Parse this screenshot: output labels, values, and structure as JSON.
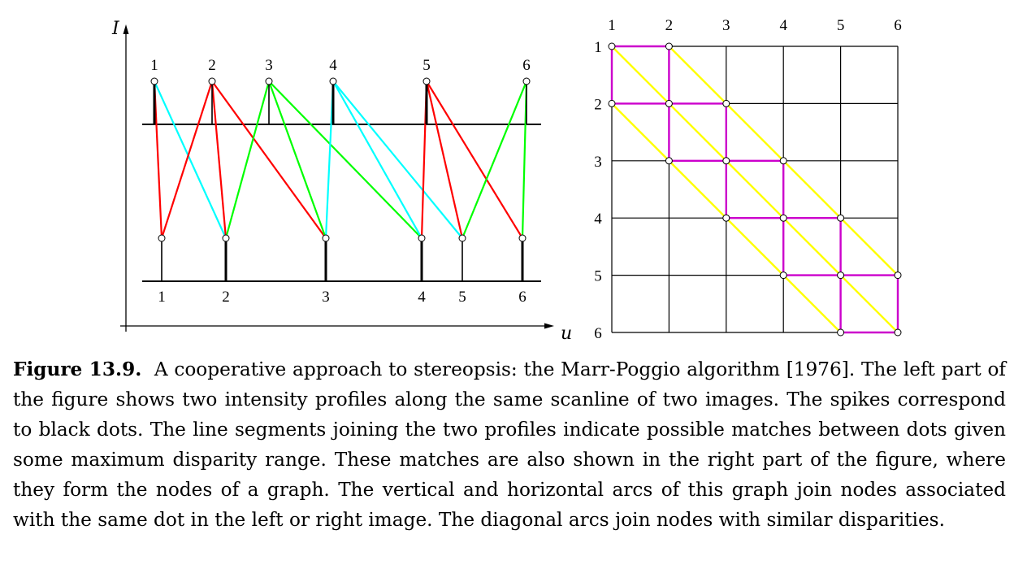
{
  "figure": {
    "left_panel": {
      "axis_labels": {
        "vertical": "I",
        "horizontal": "u"
      },
      "top_profile_labels": [
        "1",
        "2",
        "3",
        "4",
        "5",
        "6"
      ],
      "bottom_profile_labels": [
        "1",
        "2",
        "3",
        "4",
        "5",
        "6"
      ],
      "matches": [
        {
          "top": 1,
          "bottom": 1,
          "color": "#ff0000"
        },
        {
          "top": 1,
          "bottom": 2,
          "color": "#00ffff"
        },
        {
          "top": 2,
          "bottom": 1,
          "color": "#ff0000"
        },
        {
          "top": 2,
          "bottom": 2,
          "color": "#ff0000"
        },
        {
          "top": 2,
          "bottom": 3,
          "color": "#ff0000"
        },
        {
          "top": 3,
          "bottom": 2,
          "color": "#00ff00"
        },
        {
          "top": 3,
          "bottom": 3,
          "color": "#00ff00"
        },
        {
          "top": 3,
          "bottom": 4,
          "color": "#00ff00"
        },
        {
          "top": 4,
          "bottom": 3,
          "color": "#00ffff"
        },
        {
          "top": 4,
          "bottom": 4,
          "color": "#00ffff"
        },
        {
          "top": 4,
          "bottom": 5,
          "color": "#00ffff"
        },
        {
          "top": 5,
          "bottom": 4,
          "color": "#ff0000"
        },
        {
          "top": 5,
          "bottom": 5,
          "color": "#ff0000"
        },
        {
          "top": 5,
          "bottom": 6,
          "color": "#ff0000"
        },
        {
          "top": 6,
          "bottom": 5,
          "color": "#00ff00"
        },
        {
          "top": 6,
          "bottom": 6,
          "color": "#00ff00"
        }
      ]
    },
    "right_panel": {
      "column_labels": [
        "1",
        "2",
        "3",
        "4",
        "5",
        "6"
      ],
      "row_labels": [
        "1",
        "2",
        "3",
        "4",
        "5",
        "6"
      ],
      "nodes": [
        [
          1,
          1
        ],
        [
          1,
          2
        ],
        [
          2,
          1
        ],
        [
          2,
          2
        ],
        [
          2,
          3
        ],
        [
          3,
          2
        ],
        [
          3,
          3
        ],
        [
          3,
          4
        ],
        [
          4,
          3
        ],
        [
          4,
          4
        ],
        [
          4,
          5
        ],
        [
          5,
          4
        ],
        [
          5,
          5
        ],
        [
          5,
          6
        ],
        [
          6,
          5
        ],
        [
          6,
          6
        ]
      ],
      "colors": {
        "arc": "#cc00cc",
        "diagonal": "#ffff00",
        "grid": "#000000"
      }
    }
  },
  "caption": {
    "lead": "Figure 13.9.",
    "text": "A cooperative approach to stereopsis: the Marr-Poggio algorithm [1976]. The left part of the figure shows two intensity profiles along the same scanline of two images. The spikes correspond to black dots. The line segments joining the two profiles indicate possible matches between dots given some maximum disparity range. These matches are also shown in the right part of the figure, where they form the nodes of a graph. The vertical and horizontal arcs of this graph join nodes associated with the same dot in the left or right image. The diagonal arcs join nodes with similar disparities."
  }
}
